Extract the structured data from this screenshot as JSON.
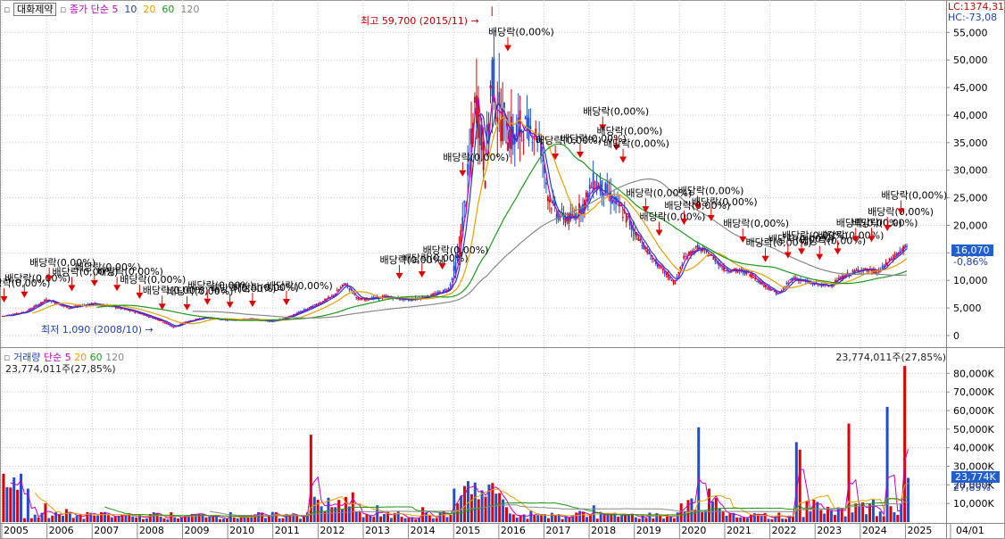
{
  "stock": {
    "name": "대화제약",
    "ma_label": "종가 단순",
    "ma_periods": [
      "5",
      "10",
      "20",
      "60",
      "120"
    ],
    "ma_colors": [
      "#c000c0",
      "#1f3fbf",
      "#e8a000",
      "#1a9a1a",
      "#888888"
    ]
  },
  "volume_panel": {
    "label": "거래량",
    "ma_label": "단순",
    "ma_periods": [
      "5",
      "20",
      "60",
      "120"
    ],
    "latest_text": "23,774,011주(27,85%)",
    "latest_text_right": "23,774,011주(27,85%)"
  },
  "right_readouts": {
    "lc": "LC:1374,31",
    "hc": "HC:-73,08",
    "price_tag": "16,070",
    "price_change": "-0,86%",
    "volume_tag": "23,774K",
    "volume_change": "27,85%"
  },
  "annotations": {
    "high": "최고 59,700 (2015/11)",
    "low": "최저 1,090 (2008/10)",
    "dividend": "배당락(0,00%)"
  },
  "chart_data": [
    {
      "type": "candlestick",
      "title": "",
      "x_tick_labels": [
        "2005",
        "2006",
        "2007",
        "2008",
        "2009",
        "2010",
        "2011",
        "2012",
        "2013",
        "2014",
        "2015",
        "2016",
        "2017",
        "2018",
        "2019",
        "2020",
        "2021",
        "2022",
        "2023",
        "2024",
        "2025",
        "04/01"
      ],
      "y_tick_labels": [
        "0",
        "5,000",
        "10,000",
        "15,000",
        "20,000",
        "25,000",
        "30,000",
        "35,000",
        "40,000",
        "45,000",
        "50,000",
        "55,000"
      ],
      "ylim": [
        0,
        57000
      ],
      "series": [
        {
          "name": "종가",
          "points": [
            [
              2005.0,
              3500
            ],
            [
              2005.5,
              4200
            ],
            [
              2006.0,
              6500
            ],
            [
              2006.5,
              5000
            ],
            [
              2007.0,
              5800
            ],
            [
              2007.5,
              5200
            ],
            [
              2008.0,
              4200
            ],
            [
              2008.5,
              2800
            ],
            [
              2008.8,
              1500
            ],
            [
              2009.0,
              2300
            ],
            [
              2009.5,
              3300
            ],
            [
              2010.0,
              2800
            ],
            [
              2010.5,
              3000
            ],
            [
              2011.0,
              2600
            ],
            [
              2011.3,
              3200
            ],
            [
              2011.8,
              5000
            ],
            [
              2012.3,
              7000
            ],
            [
              2012.6,
              9500
            ],
            [
              2012.9,
              6500
            ],
            [
              2013.5,
              7000
            ],
            [
              2014.0,
              6500
            ],
            [
              2014.5,
              7200
            ],
            [
              2014.9,
              8500
            ],
            [
              2015.1,
              14000
            ],
            [
              2015.3,
              27000
            ],
            [
              2015.5,
              43000
            ],
            [
              2015.7,
              30000
            ],
            [
              2015.85,
              48000
            ],
            [
              2016.0,
              40000
            ],
            [
              2016.3,
              36000
            ],
            [
              2016.6,
              38000
            ],
            [
              2016.9,
              36000
            ],
            [
              2017.1,
              25000
            ],
            [
              2017.3,
              22000
            ],
            [
              2017.6,
              21000
            ],
            [
              2017.9,
              24000
            ],
            [
              2018.1,
              28000
            ],
            [
              2018.4,
              26000
            ],
            [
              2018.7,
              23000
            ],
            [
              2019.0,
              19000
            ],
            [
              2019.3,
              15000
            ],
            [
              2019.6,
              12000
            ],
            [
              2019.9,
              9500
            ],
            [
              2020.1,
              14000
            ],
            [
              2020.4,
              16000
            ],
            [
              2020.7,
              14500
            ],
            [
              2021.0,
              12000
            ],
            [
              2021.5,
              11500
            ],
            [
              2021.9,
              9000
            ],
            [
              2022.2,
              7500
            ],
            [
              2022.5,
              10500
            ],
            [
              2022.9,
              9500
            ],
            [
              2023.3,
              9000
            ],
            [
              2023.7,
              11000
            ],
            [
              2024.0,
              12000
            ],
            [
              2024.4,
              11500
            ],
            [
              2024.7,
              14000
            ],
            [
              2025.0,
              16070
            ]
          ]
        },
        {
          "name": "5",
          "values": []
        },
        {
          "name": "10",
          "values": []
        },
        {
          "name": "20",
          "values": []
        },
        {
          "name": "60",
          "values": []
        },
        {
          "name": "120",
          "values": []
        }
      ],
      "high": {
        "value": 59700,
        "date": "2015/11"
      },
      "low": {
        "value": 1090,
        "date": "2008/10"
      },
      "last_close": 16070,
      "dividend_markers_years": [
        2005.05,
        2005.5,
        2006.05,
        2006.55,
        2007.05,
        2007.55,
        2008.05,
        2008.55,
        2009.1,
        2009.55,
        2010.05,
        2010.55,
        2011.3,
        2013.8,
        2014.3,
        2014.75,
        2015.2,
        2016.2,
        2017.25,
        2017.8,
        2018.3,
        2018.6,
        2018.75,
        2019.25,
        2019.55,
        2020.1,
        2020.4,
        2020.7,
        2021.4,
        2021.9,
        2022.4,
        2022.7,
        2023.1,
        2023.5,
        2023.9,
        2024.25,
        2024.6,
        2024.9
      ]
    },
    {
      "type": "bar",
      "title": "",
      "y_tick_labels": [
        "10,000K",
        "20,000K",
        "30,000K",
        "40,000K",
        "50,000K",
        "60,000K",
        "70,000K",
        "80,000K"
      ],
      "ylim": [
        0,
        85000
      ],
      "series": [
        {
          "name": "거래량",
          "points": [
            [
              2005.05,
              26000
            ],
            [
              2005.3,
              24000
            ],
            [
              2005.6,
              18000
            ],
            [
              2006.0,
              10000
            ],
            [
              2006.4,
              7000
            ],
            [
              2007.0,
              5000
            ],
            [
              2007.5,
              3000
            ],
            [
              2008.0,
              2500
            ],
            [
              2008.6,
              2000
            ],
            [
              2009.0,
              2500
            ],
            [
              2009.6,
              3000
            ],
            [
              2010.2,
              2000
            ],
            [
              2010.8,
              2200
            ],
            [
              2011.4,
              4000
            ],
            [
              2011.85,
              47000
            ],
            [
              2012.0,
              12000
            ],
            [
              2012.3,
              8000
            ],
            [
              2012.8,
              16000
            ],
            [
              2013.3,
              9000
            ],
            [
              2013.8,
              6000
            ],
            [
              2014.3,
              8000
            ],
            [
              2014.8,
              6000
            ],
            [
              2015.05,
              18000
            ],
            [
              2015.3,
              22000
            ],
            [
              2015.6,
              17000
            ],
            [
              2015.85,
              21000
            ],
            [
              2016.2,
              8000
            ],
            [
              2016.7,
              6000
            ],
            [
              2017.3,
              4000
            ],
            [
              2017.8,
              6000
            ],
            [
              2018.1,
              9000
            ],
            [
              2018.6,
              5000
            ],
            [
              2019.2,
              4000
            ],
            [
              2019.8,
              3000
            ],
            [
              2020.1,
              6000
            ],
            [
              2020.4,
              51000
            ],
            [
              2020.65,
              18000
            ],
            [
              2021.0,
              6000
            ],
            [
              2021.6,
              4000
            ],
            [
              2022.1,
              3000
            ],
            [
              2022.55,
              43000
            ],
            [
              2022.65,
              39000
            ],
            [
              2022.95,
              12000
            ],
            [
              2023.5,
              8000
            ],
            [
              2023.75,
              53000
            ],
            [
              2023.9,
              10000
            ],
            [
              2024.3,
              12000
            ],
            [
              2024.6,
              62000
            ],
            [
              2024.9,
              10000
            ],
            [
              2025.02,
              84000
            ],
            [
              2025.12,
              23774
            ]
          ]
        }
      ]
    }
  ]
}
